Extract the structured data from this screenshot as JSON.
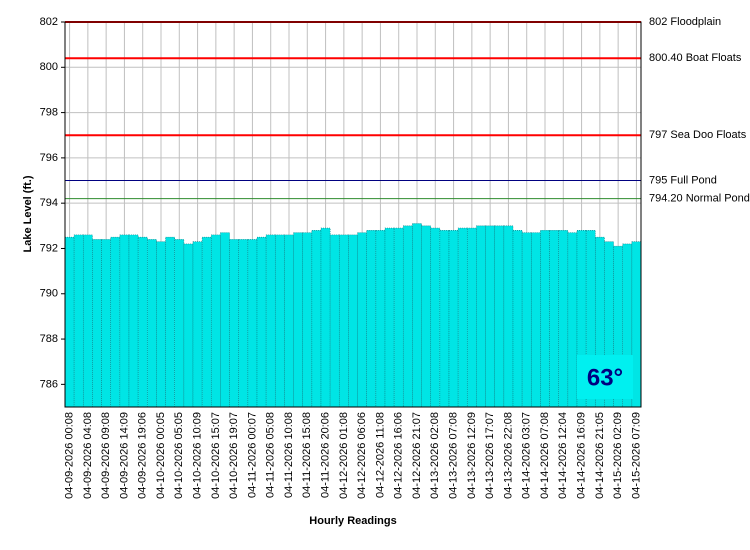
{
  "chart_data": {
    "type": "bar",
    "y_label": "Lake Level (ft.)",
    "x_label": "Hourly Readings",
    "annotation": "63°",
    "color": "#00e5e5",
    "grid": true,
    "ylim": [
      785,
      802
    ],
    "yticks": [
      786,
      788,
      790,
      792,
      794,
      796,
      798,
      800,
      802
    ],
    "lines": [
      {
        "value": 802,
        "label": "802 Floodplain",
        "color": "#ff0000"
      },
      {
        "value": 800.4,
        "label": "800.40 Boat Floats",
        "color": "#ff0000"
      },
      {
        "value": 797,
        "label": "797 Sea Doo Floats",
        "color": "#ff0000"
      },
      {
        "value": 795,
        "label": "795 Full Pond",
        "color": "#000080"
      },
      {
        "value": 794.2,
        "label": "794.20 Normal Pond",
        "color": "#2e8b2e"
      }
    ],
    "categories": [
      "04-09-2026 00:08",
      null,
      "04-09-2026 04:08",
      null,
      "04-09-2026 09:08",
      null,
      "04-09-2026 14:09",
      null,
      "04-09-2026 19:06",
      null,
      "04-10-2026 00:05",
      null,
      "04-10-2026 05:05",
      null,
      "04-10-2026 10:09",
      null,
      "04-10-2026 15:07",
      null,
      "04-10-2026 19:07",
      null,
      "04-11-2026 00:07",
      null,
      "04-11-2026 05:08",
      null,
      "04-11-2026 10:08",
      null,
      "04-11-2026 15:08",
      null,
      "04-11-2026 20:06",
      null,
      "04-12-2026 01:08",
      null,
      "04-12-2026 06:06",
      null,
      "04-12-2026 11:08",
      null,
      "04-12-2026 16:06",
      null,
      "04-12-2026 21:07",
      null,
      "04-13-2026 02:08",
      null,
      "04-13-2026 07:08",
      null,
      "04-13-2026 12:09",
      null,
      "04-13-2026 17:07",
      null,
      "04-13-2026 22:08",
      null,
      "04-14-2026 03:07",
      null,
      "04-14-2026 07:08",
      null,
      "04-14-2026 12:04",
      null,
      "04-14-2026 16:09",
      null,
      "04-14-2026 21:05",
      null,
      "04-15-2026 02:09",
      null,
      "04-15-2026 07:09"
    ],
    "values": [
      792.5,
      792.6,
      792.6,
      792.4,
      792.4,
      792.5,
      792.6,
      792.6,
      792.5,
      792.4,
      792.3,
      792.5,
      792.4,
      792.2,
      792.3,
      792.5,
      792.6,
      792.7,
      792.4,
      792.4,
      792.4,
      792.5,
      792.6,
      792.6,
      792.6,
      792.7,
      792.7,
      792.8,
      792.9,
      792.6,
      792.6,
      792.6,
      792.7,
      792.8,
      792.8,
      792.9,
      792.9,
      793.0,
      793.1,
      793.0,
      792.9,
      792.8,
      792.8,
      792.9,
      792.9,
      793.0,
      793.0,
      793.0,
      793.0,
      792.8,
      792.7,
      792.7,
      792.8,
      792.8,
      792.8,
      792.7,
      792.8,
      792.8,
      792.5,
      792.3,
      792.1,
      792.2,
      792.3
    ]
  }
}
